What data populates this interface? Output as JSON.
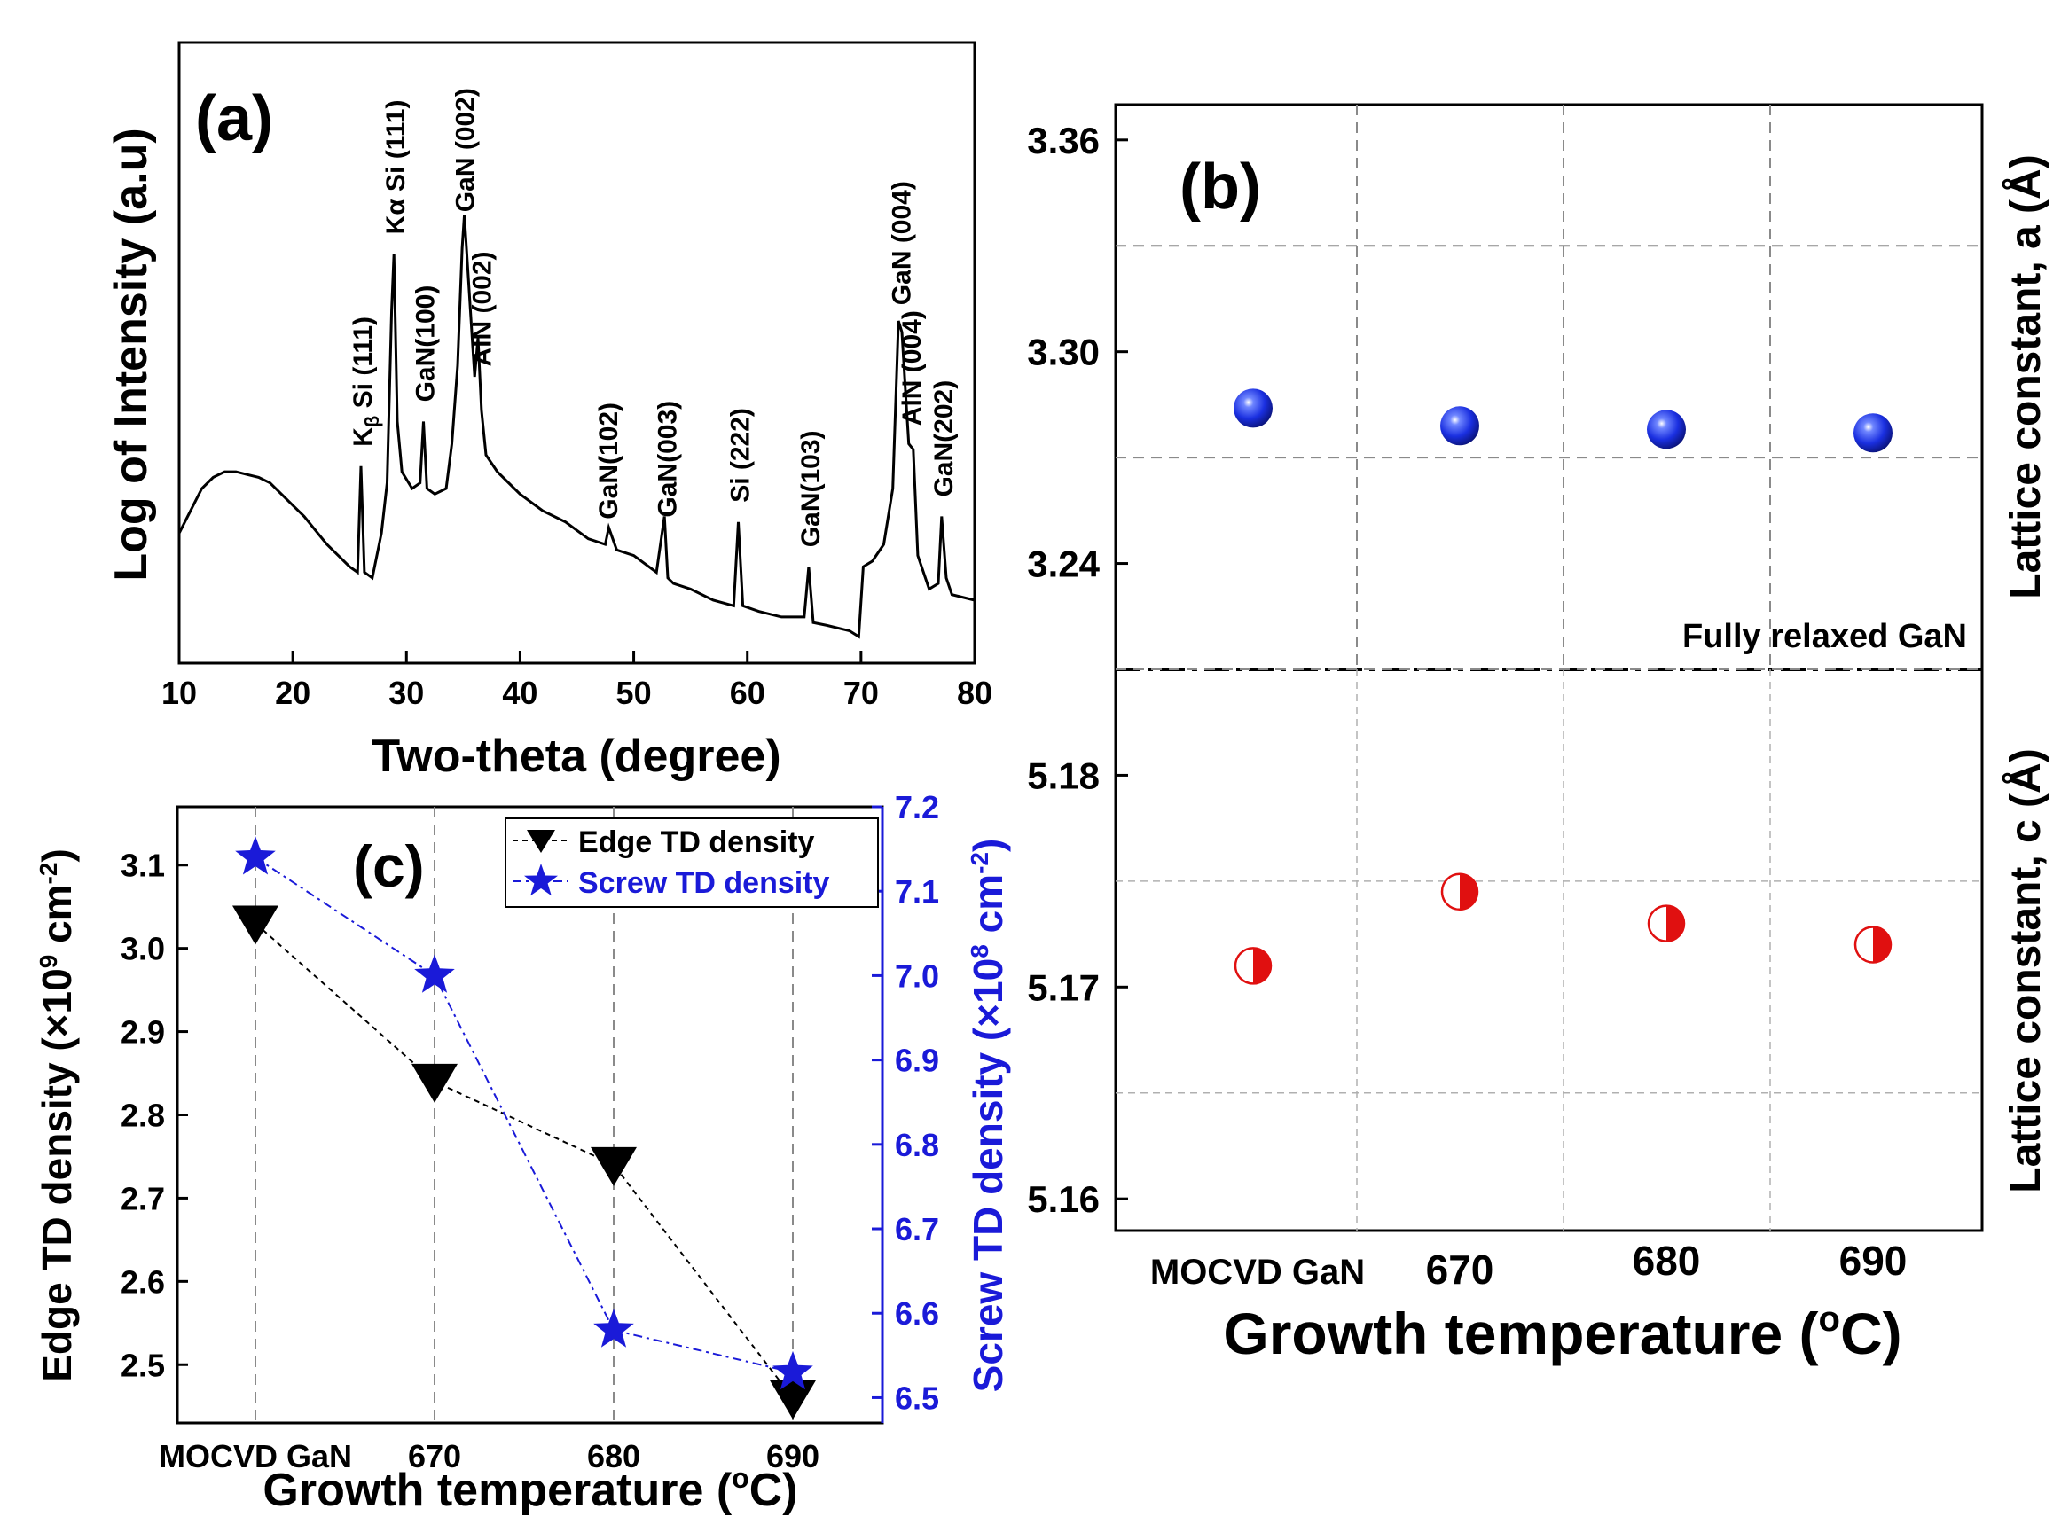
{
  "panels": {
    "a": {
      "label": "(a)",
      "chart_data": {
        "type": "line",
        "xlabel": "Two-theta (degree)",
        "ylabel": "Log of Intensity (a.u)",
        "xlim": [
          10,
          80
        ],
        "xticks": [
          10,
          20,
          30,
          40,
          50,
          60,
          70,
          80
        ],
        "y_scale": "log (arbitrary units, no tick labels)",
        "series": [
          {
            "x": [
              10,
              11,
              12,
              13,
              14,
              15,
              16,
              17,
              18,
              19,
              20,
              21,
              22,
              23,
              24,
              25,
              25.7,
              26,
              26.3,
              27,
              27.8,
              28.3,
              28.7,
              28.9,
              29.2,
              29.6,
              30.5,
              31.2,
              31.5,
              31.8,
              32.5,
              33.5,
              34,
              34.5,
              34.9,
              35.1,
              35.5,
              36,
              36.3,
              36.6,
              37,
              38,
              40,
              42,
              44,
              46,
              47.5,
              47.8,
              48.5,
              50,
              52,
              52.7,
              53,
              53.5,
              55,
              57,
              58.8,
              59.2,
              59.6,
              61,
              63,
              65,
              65.4,
              65.8,
              67,
              69,
              69.8,
              70.2,
              71,
              72,
              72.8,
              73.3,
              73.6,
              73.9,
              74.2,
              74.6,
              75,
              76,
              76.8,
              77.1,
              77.5,
              78,
              80
            ],
            "y": [
              0.22,
              0.26,
              0.3,
              0.32,
              0.33,
              0.33,
              0.325,
              0.32,
              0.31,
              0.29,
              0.27,
              0.25,
              0.225,
              0.2,
              0.18,
              0.16,
              0.15,
              0.34,
              0.15,
              0.14,
              0.22,
              0.31,
              0.62,
              0.72,
              0.42,
              0.33,
              0.3,
              0.31,
              0.42,
              0.3,
              0.29,
              0.3,
              0.38,
              0.52,
              0.73,
              0.79,
              0.66,
              0.5,
              0.57,
              0.44,
              0.36,
              0.33,
              0.29,
              0.26,
              0.24,
              0.21,
              0.2,
              0.23,
              0.19,
              0.18,
              0.15,
              0.25,
              0.14,
              0.13,
              0.12,
              0.1,
              0.09,
              0.24,
              0.09,
              0.08,
              0.07,
              0.07,
              0.16,
              0.06,
              0.055,
              0.045,
              0.035,
              0.16,
              0.17,
              0.2,
              0.3,
              0.6,
              0.58,
              0.48,
              0.38,
              0.37,
              0.18,
              0.12,
              0.13,
              0.25,
              0.14,
              0.11,
              0.1
            ]
          }
        ],
        "annotations": [
          {
            "text": "K",
            "sub": "β",
            "rest": " Si (111)",
            "x": 26.0
          },
          {
            "text": "Kα Si (111)",
            "x": 28.9
          },
          {
            "text": "GaN(100)",
            "x": 31.5
          },
          {
            "text": "GaN (002)",
            "x": 35.0
          },
          {
            "text": "AlN (002)",
            "x": 36.5
          },
          {
            "text": "GaN(102)",
            "x": 47.6
          },
          {
            "text": "GaN(003)",
            "x": 52.8
          },
          {
            "text": "Si (222)",
            "x": 59.2
          },
          {
            "text": "GaN(103)",
            "x": 65.4
          },
          {
            "text": "GaN (004)",
            "x": 73.4
          },
          {
            "text": "AlN (004)",
            "x": 74.3
          },
          {
            "text": "GaN(202)",
            "x": 77.1
          }
        ]
      }
    },
    "b": {
      "label": "(b)",
      "chart_data": {
        "type": "scatter",
        "categories": [
          "MOCVD GaN",
          "670",
          "680",
          "690"
        ],
        "xlabel": "Growth temperature (°C)",
        "xlabel_parts": [
          "Growth temperature (",
          "o",
          "C)"
        ],
        "annotation": "Fully relaxed GaN",
        "series": [
          {
            "name_parts": [
              "Lattice constant, a (",
              "Å",
              ")"
            ],
            "values": [
              3.284,
              3.279,
              3.278,
              3.277
            ],
            "ylim": [
              3.21,
              3.37
            ],
            "yticks": [
              "3.36",
              "3.30",
              "3.24"
            ],
            "color": "#1a2fe0"
          },
          {
            "name_parts": [
              "Lattice constant, c (",
              "Å",
              ")"
            ],
            "values": [
              5.171,
              5.1745,
              5.173,
              5.172
            ],
            "ylim": [
              5.1585,
              5.185
            ],
            "yticks": [
              "5.18",
              "5.17",
              "5.16"
            ],
            "color": "#e01010"
          }
        ]
      }
    },
    "c": {
      "label": "(c)",
      "chart_data": {
        "type": "line",
        "categories": [
          "MOCVD GaN",
          "670",
          "680",
          "690"
        ],
        "xlabel": "Growth temperature (°C)",
        "xlabel_parts": [
          "Growth temperature (",
          "o",
          "C)"
        ],
        "series": [
          {
            "name": "Edge TD density",
            "values": [
              3.03,
              2.84,
              2.74,
              2.46
            ],
            "axis": "left",
            "color": "#000000",
            "marker": "down-triangle"
          },
          {
            "name": "Screw TD density",
            "values": [
              7.14,
              7.0,
              6.58,
              6.53
            ],
            "axis": "right",
            "color": "#1a1ad8",
            "marker": "star"
          }
        ],
        "y_left": {
          "label_parts": [
            "Edge TD density (×10",
            "9",
            " cm",
            "-2",
            ")"
          ],
          "ylim": [
            2.43,
            3.17
          ],
          "ticks": [
            "2.5",
            "2.6",
            "2.7",
            "2.8",
            "2.9",
            "3.0",
            "3.1"
          ]
        },
        "y_right": {
          "label_parts": [
            "Screw TD density (×10",
            "8",
            " cm",
            "-2",
            ")"
          ],
          "ylim": [
            6.47,
            7.2
          ],
          "ticks": [
            "6.5",
            "6.6",
            "6.7",
            "6.8",
            "6.9",
            "7.0",
            "7.1",
            "7.2"
          ]
        },
        "legend_position": "top-right"
      }
    }
  }
}
